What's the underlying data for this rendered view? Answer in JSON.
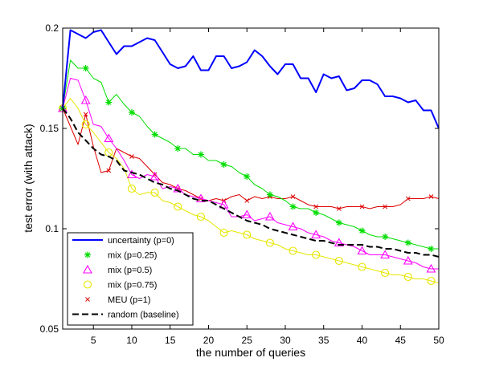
{
  "chart_data": {
    "type": "line",
    "xlabel": "the number of queries",
    "ylabel": "test error (with attack)",
    "xlim": [
      1,
      50
    ],
    "ylim": [
      0.05,
      0.2
    ],
    "xticks": [
      5,
      10,
      15,
      20,
      25,
      30,
      35,
      40,
      45,
      50
    ],
    "yticks": [
      0.05,
      0.1,
      0.15,
      0.2
    ],
    "ytick_labels": [
      "0.05",
      "0.1",
      "0.15",
      "0.2"
    ],
    "grid": false,
    "legend_position": "bottom-left",
    "series": [
      {
        "name": "uncertainty (p=0)",
        "color": "#0000ff",
        "marker": "none",
        "line": "solid",
        "width": 2,
        "x": [
          1,
          2,
          3,
          4,
          5,
          6,
          7,
          8,
          9,
          10,
          11,
          12,
          13,
          14,
          15,
          16,
          17,
          18,
          19,
          20,
          21,
          22,
          23,
          24,
          25,
          26,
          27,
          28,
          29,
          30,
          31,
          32,
          33,
          34,
          35,
          36,
          37,
          38,
          39,
          40,
          41,
          42,
          43,
          44,
          45,
          46,
          47,
          48,
          49,
          50
        ],
        "y": [
          0.16,
          0.199,
          0.197,
          0.195,
          0.198,
          0.199,
          0.193,
          0.187,
          0.191,
          0.191,
          0.193,
          0.195,
          0.194,
          0.188,
          0.182,
          0.18,
          0.181,
          0.186,
          0.179,
          0.179,
          0.186,
          0.186,
          0.18,
          0.181,
          0.183,
          0.189,
          0.186,
          0.181,
          0.177,
          0.182,
          0.182,
          0.175,
          0.175,
          0.168,
          0.177,
          0.175,
          0.176,
          0.169,
          0.17,
          0.174,
          0.174,
          0.172,
          0.166,
          0.166,
          0.165,
          0.163,
          0.164,
          0.159,
          0.159,
          0.15
        ]
      },
      {
        "name": "mix (p=0.25)",
        "color": "#00dd00",
        "marker": "asterisk",
        "line": "solid",
        "width": 1,
        "x": [
          1,
          2,
          3,
          4,
          5,
          6,
          7,
          8,
          9,
          10,
          11,
          12,
          13,
          14,
          15,
          16,
          17,
          18,
          19,
          20,
          21,
          22,
          23,
          24,
          25,
          26,
          27,
          28,
          29,
          30,
          31,
          32,
          33,
          34,
          35,
          36,
          37,
          38,
          39,
          40,
          41,
          42,
          43,
          44,
          45,
          46,
          47,
          48,
          49,
          50
        ],
        "y": [
          0.16,
          0.184,
          0.18,
          0.18,
          0.175,
          0.173,
          0.163,
          0.167,
          0.162,
          0.158,
          0.156,
          0.151,
          0.147,
          0.145,
          0.143,
          0.14,
          0.14,
          0.137,
          0.137,
          0.134,
          0.134,
          0.132,
          0.131,
          0.128,
          0.126,
          0.122,
          0.12,
          0.117,
          0.116,
          0.114,
          0.111,
          0.11,
          0.11,
          0.108,
          0.107,
          0.105,
          0.103,
          0.102,
          0.101,
          0.099,
          0.097,
          0.096,
          0.096,
          0.095,
          0.094,
          0.093,
          0.092,
          0.091,
          0.09,
          0.09
        ]
      },
      {
        "name": "mix (p=0.5)",
        "color": "#ff00ff",
        "marker": "triangle",
        "line": "solid",
        "width": 1,
        "x": [
          1,
          2,
          3,
          4,
          5,
          6,
          7,
          8,
          9,
          10,
          11,
          12,
          13,
          14,
          15,
          16,
          17,
          18,
          19,
          20,
          21,
          22,
          23,
          24,
          25,
          26,
          27,
          28,
          29,
          30,
          31,
          32,
          33,
          34,
          35,
          36,
          37,
          38,
          39,
          40,
          41,
          42,
          43,
          44,
          45,
          46,
          47,
          48,
          49,
          50
        ],
        "y": [
          0.16,
          0.175,
          0.174,
          0.164,
          0.152,
          0.151,
          0.145,
          0.14,
          0.134,
          0.127,
          0.125,
          0.127,
          0.126,
          0.12,
          0.121,
          0.12,
          0.117,
          0.116,
          0.115,
          0.114,
          0.113,
          0.112,
          0.106,
          0.106,
          0.107,
          0.104,
          0.105,
          0.106,
          0.103,
          0.102,
          0.101,
          0.1,
          0.098,
          0.097,
          0.096,
          0.094,
          0.093,
          0.092,
          0.091,
          0.089,
          0.087,
          0.087,
          0.087,
          0.086,
          0.085,
          0.084,
          0.083,
          0.081,
          0.08,
          0.08
        ]
      },
      {
        "name": "mix (p=0.75)",
        "color": "#e6e600",
        "marker": "circle",
        "line": "solid",
        "width": 1,
        "x": [
          1,
          2,
          3,
          4,
          5,
          6,
          7,
          8,
          9,
          10,
          11,
          12,
          13,
          14,
          15,
          16,
          17,
          18,
          19,
          20,
          21,
          22,
          23,
          24,
          25,
          26,
          27,
          28,
          29,
          30,
          31,
          32,
          33,
          34,
          35,
          36,
          37,
          38,
          39,
          40,
          41,
          42,
          43,
          44,
          45,
          46,
          47,
          48,
          49,
          50
        ],
        "y": [
          0.16,
          0.165,
          0.16,
          0.152,
          0.148,
          0.143,
          0.138,
          0.135,
          0.13,
          0.12,
          0.117,
          0.118,
          0.118,
          0.114,
          0.113,
          0.111,
          0.109,
          0.107,
          0.106,
          0.104,
          0.101,
          0.098,
          0.099,
          0.098,
          0.097,
          0.095,
          0.094,
          0.093,
          0.092,
          0.09,
          0.089,
          0.088,
          0.087,
          0.087,
          0.086,
          0.085,
          0.084,
          0.083,
          0.082,
          0.081,
          0.08,
          0.079,
          0.078,
          0.077,
          0.077,
          0.076,
          0.075,
          0.075,
          0.074,
          0.073
        ]
      },
      {
        "name": "MEU (p=1)",
        "color": "#dd0000",
        "marker": "x",
        "line": "solid",
        "width": 1,
        "x": [
          1,
          2,
          3,
          4,
          5,
          6,
          7,
          8,
          9,
          10,
          11,
          12,
          13,
          14,
          15,
          16,
          17,
          18,
          19,
          20,
          21,
          22,
          23,
          24,
          25,
          26,
          27,
          28,
          29,
          30,
          31,
          32,
          33,
          34,
          35,
          36,
          37,
          38,
          39,
          40,
          41,
          42,
          43,
          44,
          45,
          46,
          47,
          48,
          49,
          50
        ],
        "y": [
          0.16,
          0.151,
          0.142,
          0.157,
          0.141,
          0.128,
          0.129,
          0.14,
          0.138,
          0.136,
          0.135,
          0.131,
          0.127,
          0.123,
          0.122,
          0.12,
          0.119,
          0.117,
          0.115,
          0.114,
          0.115,
          0.114,
          0.116,
          0.117,
          0.114,
          0.116,
          0.115,
          0.116,
          0.115,
          0.115,
          0.116,
          0.114,
          0.112,
          0.111,
          0.111,
          0.111,
          0.11,
          0.111,
          0.111,
          0.111,
          0.11,
          0.111,
          0.111,
          0.111,
          0.112,
          0.115,
          0.115,
          0.115,
          0.116,
          0.115
        ]
      },
      {
        "name": "random (baseline)",
        "color": "#000000",
        "marker": "none",
        "line": "dashed",
        "width": 2,
        "x": [
          1,
          2,
          3,
          4,
          5,
          6,
          7,
          8,
          9,
          10,
          11,
          12,
          13,
          14,
          15,
          16,
          17,
          18,
          19,
          20,
          21,
          22,
          23,
          24,
          25,
          26,
          27,
          28,
          29,
          30,
          31,
          32,
          33,
          34,
          35,
          36,
          37,
          38,
          39,
          40,
          41,
          42,
          43,
          44,
          45,
          46,
          47,
          48,
          49,
          50
        ],
        "y": [
          0.16,
          0.155,
          0.148,
          0.144,
          0.14,
          0.137,
          0.136,
          0.134,
          0.129,
          0.128,
          0.127,
          0.125,
          0.123,
          0.122,
          0.12,
          0.119,
          0.117,
          0.115,
          0.114,
          0.114,
          0.112,
          0.11,
          0.108,
          0.106,
          0.104,
          0.103,
          0.102,
          0.1,
          0.099,
          0.098,
          0.097,
          0.096,
          0.095,
          0.094,
          0.094,
          0.093,
          0.092,
          0.092,
          0.092,
          0.092,
          0.091,
          0.091,
          0.09,
          0.09,
          0.089,
          0.088,
          0.088,
          0.087,
          0.087,
          0.086
        ]
      }
    ]
  }
}
